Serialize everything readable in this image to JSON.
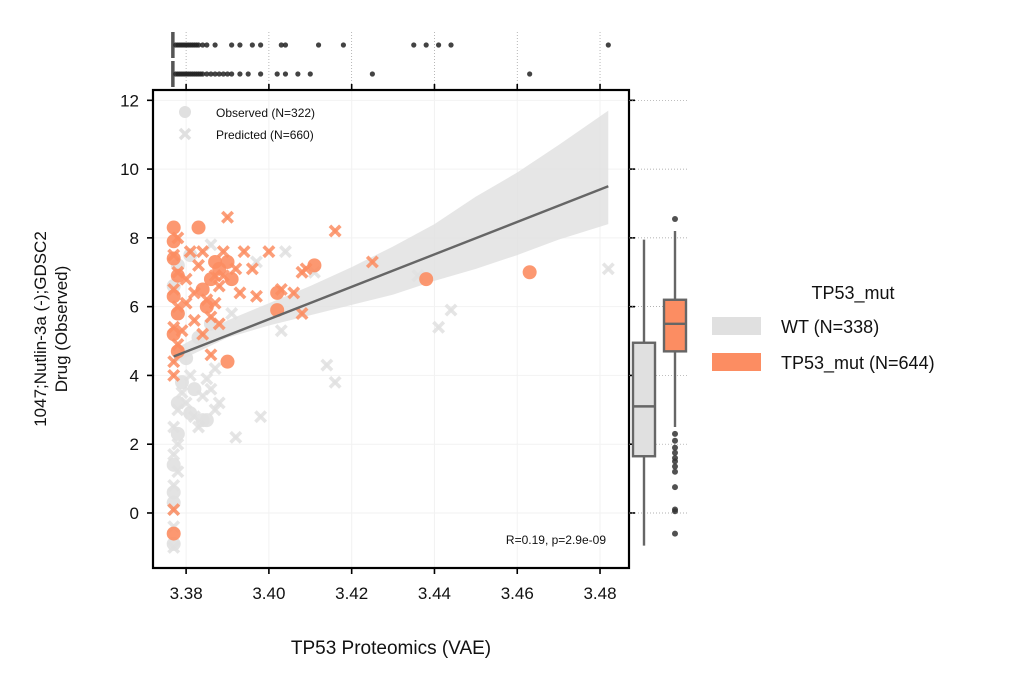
{
  "chart_data": {
    "type": "scatter",
    "xlabel": "TP53 Proteomics (VAE)",
    "ylabel_line1": "1047;Nutlin-3a (-);GDSC2",
    "ylabel_line2": "Drug (Observed)",
    "xlim": [
      3.372,
      3.487
    ],
    "ylim": [
      -1.6,
      12.3
    ],
    "x_ticks": [
      3.38,
      3.4,
      3.42,
      3.44,
      3.46,
      3.48
    ],
    "x_tick_labels": [
      "3.38",
      "3.40",
      "3.42",
      "3.44",
      "3.46",
      "3.48"
    ],
    "y_ticks": [
      0,
      2,
      4,
      6,
      8,
      10,
      12
    ],
    "y_tick_labels": [
      "0",
      "2",
      "4",
      "6",
      "8",
      "10",
      "12"
    ],
    "grid": true,
    "marker_legend": {
      "placement": "top-left",
      "items": [
        {
          "label": "Observed (N=322)",
          "marker": "circle"
        },
        {
          "label": "Predicted (N=660)",
          "marker": "x"
        }
      ]
    },
    "hue_legend": {
      "placement": "right",
      "title": "TP53_mut",
      "items": [
        {
          "label": "WT (N=338)",
          "color": "#e0e0e0"
        },
        {
          "label": "TP53_mut (N=644)",
          "color": "#fc8d62"
        }
      ]
    },
    "annotation": "R=0.19, p=2.9e-09",
    "regression": {
      "x": [
        3.377,
        3.482
      ],
      "y": [
        4.55,
        9.5
      ]
    },
    "confidence_band": {
      "x": [
        3.377,
        3.39,
        3.4,
        3.41,
        3.42,
        3.43,
        3.44,
        3.45,
        3.46,
        3.47,
        3.482
      ],
      "upper": [
        4.75,
        5.6,
        6.1,
        6.6,
        7.15,
        7.75,
        8.4,
        9.2,
        9.9,
        10.7,
        11.7
      ],
      "lower": [
        4.35,
        5.1,
        5.45,
        5.75,
        6.05,
        6.35,
        6.75,
        7.1,
        7.5,
        7.95,
        8.4
      ]
    },
    "series": [
      {
        "name": "WT (N=338)",
        "color": "#e0e0e0",
        "observed": [
          [
            3.377,
            -0.9
          ],
          [
            3.377,
            0.3
          ],
          [
            3.377,
            0.6
          ],
          [
            3.377,
            1.4
          ],
          [
            3.378,
            2.3
          ],
          [
            3.378,
            3.2
          ],
          [
            3.379,
            3.8
          ],
          [
            3.38,
            4.5
          ],
          [
            3.381,
            2.9
          ],
          [
            3.382,
            3.6
          ],
          [
            3.384,
            2.7
          ],
          [
            3.385,
            2.7
          ],
          [
            3.383,
            5.1
          ],
          [
            3.386,
            5.5
          ],
          [
            3.378,
            5.8
          ],
          [
            3.377,
            6.6
          ],
          [
            3.378,
            7.2
          ],
          [
            3.381,
            7.5
          ]
        ],
        "predicted": [
          [
            3.377,
            -1.0
          ],
          [
            3.377,
            -0.4
          ],
          [
            3.377,
            0.1
          ],
          [
            3.377,
            0.8
          ],
          [
            3.378,
            1.2
          ],
          [
            3.377,
            1.7
          ],
          [
            3.378,
            2.0
          ],
          [
            3.377,
            2.5
          ],
          [
            3.378,
            3.0
          ],
          [
            3.379,
            3.5
          ],
          [
            3.38,
            3.2
          ],
          [
            3.381,
            4.0
          ],
          [
            3.382,
            2.8
          ],
          [
            3.383,
            2.5
          ],
          [
            3.384,
            3.4
          ],
          [
            3.385,
            3.9
          ],
          [
            3.386,
            3.6
          ],
          [
            3.387,
            3.0
          ],
          [
            3.388,
            3.2
          ],
          [
            3.387,
            4.2
          ],
          [
            3.386,
            7.8
          ],
          [
            3.391,
            5.8
          ],
          [
            3.392,
            2.2
          ],
          [
            3.398,
            2.8
          ],
          [
            3.403,
            5.3
          ],
          [
            3.404,
            7.6
          ],
          [
            3.397,
            7.3
          ],
          [
            3.411,
            7.0
          ],
          [
            3.414,
            4.3
          ],
          [
            3.416,
            3.8
          ],
          [
            3.436,
            6.9
          ],
          [
            3.441,
            5.4
          ],
          [
            3.444,
            5.9
          ],
          [
            3.482,
            7.1
          ]
        ]
      },
      {
        "name": "TP53_mut (N=644)",
        "color": "#fc8d62",
        "observed": [
          [
            3.377,
            8.3
          ],
          [
            3.377,
            7.9
          ],
          [
            3.377,
            7.4
          ],
          [
            3.378,
            6.9
          ],
          [
            3.377,
            6.3
          ],
          [
            3.378,
            5.8
          ],
          [
            3.377,
            5.2
          ],
          [
            3.378,
            4.7
          ],
          [
            3.377,
            -0.6
          ],
          [
            3.383,
            8.3
          ],
          [
            3.384,
            6.5
          ],
          [
            3.385,
            6.0
          ],
          [
            3.386,
            6.8
          ],
          [
            3.387,
            7.3
          ],
          [
            3.388,
            7.1
          ],
          [
            3.39,
            7.3
          ],
          [
            3.391,
            6.8
          ],
          [
            3.39,
            4.4
          ],
          [
            3.402,
            6.4
          ],
          [
            3.402,
            5.9
          ],
          [
            3.411,
            7.2
          ],
          [
            3.438,
            6.8
          ],
          [
            3.463,
            7.0
          ]
        ],
        "predicted": [
          [
            3.377,
            0.1
          ],
          [
            3.377,
            4.0
          ],
          [
            3.377,
            4.4
          ],
          [
            3.378,
            4.9
          ],
          [
            3.377,
            5.4
          ],
          [
            3.378,
            6.0
          ],
          [
            3.377,
            6.5
          ],
          [
            3.378,
            7.0
          ],
          [
            3.377,
            7.5
          ],
          [
            3.378,
            8.0
          ],
          [
            3.379,
            5.3
          ],
          [
            3.38,
            6.1
          ],
          [
            3.38,
            6.8
          ],
          [
            3.381,
            7.6
          ],
          [
            3.382,
            5.6
          ],
          [
            3.382,
            6.4
          ],
          [
            3.383,
            7.2
          ],
          [
            3.384,
            5.2
          ],
          [
            3.384,
            7.6
          ],
          [
            3.385,
            6.2
          ],
          [
            3.386,
            5.7
          ],
          [
            3.386,
            4.6
          ],
          [
            3.387,
            6.9
          ],
          [
            3.387,
            6.1
          ],
          [
            3.388,
            6.6
          ],
          [
            3.388,
            5.5
          ],
          [
            3.389,
            7.6
          ],
          [
            3.389,
            6.9
          ],
          [
            3.39,
            8.6
          ],
          [
            3.392,
            7.1
          ],
          [
            3.393,
            6.4
          ],
          [
            3.394,
            7.6
          ],
          [
            3.396,
            7.1
          ],
          [
            3.397,
            6.3
          ],
          [
            3.4,
            7.6
          ],
          [
            3.403,
            6.5
          ],
          [
            3.406,
            6.4
          ],
          [
            3.408,
            5.8
          ],
          [
            3.408,
            7.0
          ],
          [
            3.409,
            7.1
          ],
          [
            3.416,
            8.2
          ],
          [
            3.425,
            7.3
          ]
        ]
      }
    ],
    "boxplot": {
      "groups": [
        {
          "name": "WT",
          "color": "#e0e0e0",
          "min": -0.95,
          "q1": 1.65,
          "median": 3.1,
          "q3": 4.95,
          "max": 7.95,
          "outliers": []
        },
        {
          "name": "TP53_mut",
          "color": "#fc8d62",
          "min": 2.5,
          "q1": 4.7,
          "median": 5.5,
          "q3": 6.2,
          "max": 8.2,
          "outliers": [
            8.55,
            2.3,
            2.1,
            1.9,
            1.75,
            1.6,
            1.5,
            1.35,
            1.2,
            0.75,
            0.1,
            0.05,
            -0.6
          ]
        }
      ]
    },
    "rugplot": {
      "rows": [
        {
          "name": "WT",
          "x": [
            3.3775,
            3.378,
            3.3785,
            3.379,
            3.3795,
            3.38,
            3.3805,
            3.381,
            3.3815,
            3.382,
            3.3825,
            3.383,
            3.384,
            3.385,
            3.387,
            3.391,
            3.393,
            3.396,
            3.398,
            3.403,
            3.404,
            3.412,
            3.418,
            3.435,
            3.438,
            3.441,
            3.444,
            3.482
          ]
        },
        {
          "name": "TP53_mut",
          "x": [
            3.3775,
            3.378,
            3.3785,
            3.379,
            3.3795,
            3.38,
            3.3805,
            3.381,
            3.3815,
            3.382,
            3.3825,
            3.383,
            3.3835,
            3.384,
            3.385,
            3.386,
            3.387,
            3.388,
            3.389,
            3.39,
            3.391,
            3.393,
            3.395,
            3.398,
            3.402,
            3.404,
            3.407,
            3.41,
            3.425,
            3.463
          ]
        }
      ]
    }
  }
}
